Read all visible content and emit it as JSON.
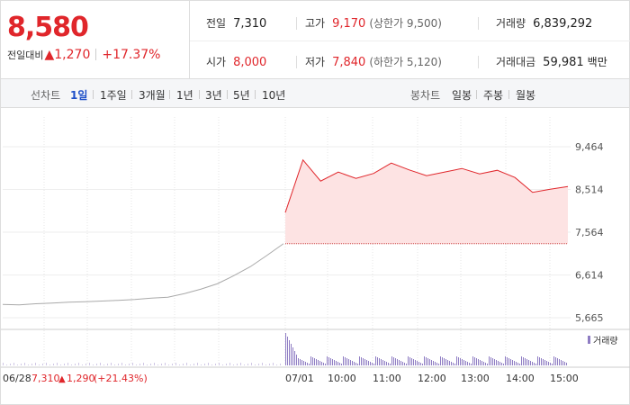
{
  "quote": {
    "price": "8,580",
    "change_label": "전일대비",
    "change_value": "1,270",
    "change_pct": "+17.37%",
    "prev_label": "전일",
    "prev_value": "7,310",
    "high_label": "고가",
    "high_value": "9,170",
    "upper_limit": "(상한가 9,500)",
    "volume_label": "거래량",
    "volume_value": "6,839,292",
    "open_label": "시가",
    "open_value": "8,000",
    "low_label": "저가",
    "low_value": "7,840",
    "lower_limit": "(하한가 5,120)",
    "amount_label": "거래대금",
    "amount_value": "59,981",
    "amount_unit": "백만"
  },
  "tabs": {
    "line_label": "선차트",
    "line_periods": [
      "1일",
      "1주일",
      "3개월",
      "1년",
      "3년",
      "5년",
      "10년"
    ],
    "line_active": "1일",
    "candle_label": "봉차트",
    "candle_periods": [
      "일봉",
      "주봉",
      "월봉"
    ]
  },
  "colors": {
    "up": "#e0262b",
    "down": "#1d4fc8",
    "volume": "#8e7cc3"
  },
  "chart_data": {
    "type": "line",
    "y_ticks": [
      "9,464",
      "8,514",
      "7,564",
      "6,614",
      "5,665"
    ],
    "ylim": [
      5665,
      9464
    ],
    "prev_close": 7310,
    "x_ticks": [
      "07/01",
      "10:00",
      "11:00",
      "12:00",
      "13:00",
      "14:00",
      "15:00"
    ],
    "prev_day_series": [
      5960,
      5950,
      5975,
      5990,
      6010,
      6020,
      6035,
      6050,
      6070,
      6100,
      6120,
      6200,
      6300,
      6420,
      6600,
      6800,
      7050,
      7310
    ],
    "intraday_series": [
      {
        "time": "09:00",
        "price": 8000
      },
      {
        "time": "09:05",
        "price": 9170
      },
      {
        "time": "09:15",
        "price": 8700
      },
      {
        "time": "09:30",
        "price": 8900
      },
      {
        "time": "10:00",
        "price": 8760
      },
      {
        "time": "10:30",
        "price": 8870
      },
      {
        "time": "11:00",
        "price": 9100
      },
      {
        "time": "11:30",
        "price": 8950
      },
      {
        "time": "12:00",
        "price": 8820
      },
      {
        "time": "12:30",
        "price": 8900
      },
      {
        "time": "13:00",
        "price": 8980
      },
      {
        "time": "13:30",
        "price": 8860
      },
      {
        "time": "14:00",
        "price": 8940
      },
      {
        "time": "14:30",
        "price": 8780
      },
      {
        "time": "14:50",
        "price": 8450
      },
      {
        "time": "15:00",
        "price": 8520
      },
      {
        "time": "15:20",
        "price": 8580
      }
    ],
    "volume_label": "거래량",
    "footer": {
      "date": "06/28",
      "close": "7,310",
      "change": "1,290",
      "pct": "(+21.43%)"
    }
  }
}
